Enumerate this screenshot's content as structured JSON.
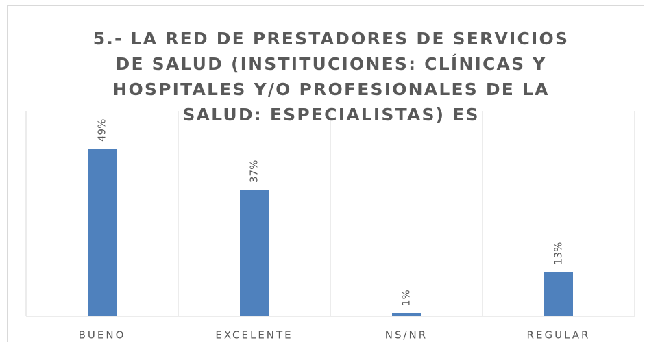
{
  "chart_data": {
    "type": "bar",
    "title": "5.- LA RED DE PRESTADORES DE SERVICIOS DE SALUD (INSTITUCIONES: CLÍNICAS Y HOSPITALES Y/O PROFESIONALES DE LA SALUD: ESPECIALISTAS) ES",
    "categories": [
      "BUENO",
      "EXCELENTE",
      "NS/NR",
      "REGULAR"
    ],
    "values": [
      49,
      37,
      1,
      13
    ],
    "value_labels": [
      "49%",
      "37%",
      "1%",
      "13%"
    ],
    "color": "#4f81bd",
    "ylim": [
      0,
      60
    ]
  }
}
